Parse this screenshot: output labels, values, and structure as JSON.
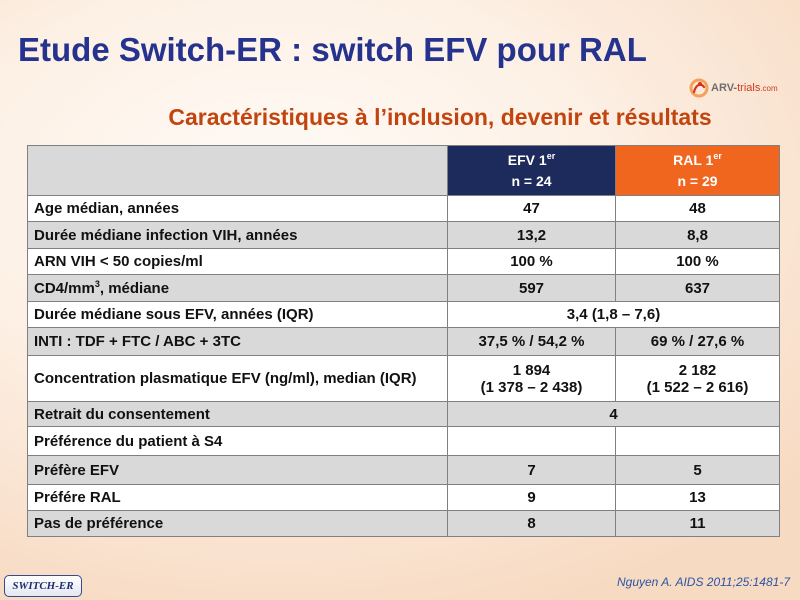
{
  "slide": {
    "title": "Etude Switch-ER : switch EFV pour RAL",
    "subtitle": "Caractéristiques à l’inclusion, devenir et résultats",
    "logo": {
      "part1": "ARV-",
      "part2": "trials",
      "part3": ".com"
    },
    "badge": "SWITCH-ER",
    "reference": "Nguyen A. AIDS 2011;25:1481-7"
  },
  "colors": {
    "title": "#25338f",
    "subtitle": "#c2450f",
    "efv_header": "#1d2a5c",
    "ral_header": "#f0661f",
    "row_shade": "#d9d9d9",
    "reference": "#2a55a6",
    "badge": "#1f2d6e"
  },
  "table": {
    "columns": [
      {
        "name": "EFV 1",
        "sup": "er",
        "n": "n = 24"
      },
      {
        "name": "RAL 1",
        "sup": "er",
        "n": "n = 29"
      }
    ],
    "rows": [
      {
        "label": "Age médian, années",
        "efv": "47",
        "ral": "48"
      },
      {
        "label": "Durée médiane infection VIH, années",
        "efv": "13,2",
        "ral": "8,8"
      },
      {
        "label": "ARN VIH < 50 copies/ml",
        "efv": "100 %",
        "ral": "100 %"
      },
      {
        "label": "CD4/mm",
        "label_sup": "3",
        "label_suffix": ", médiane",
        "efv": "597",
        "ral": "637"
      },
      {
        "label": "Durée médiane sous EFV, années (IQR)",
        "both": "3,4 (1,8 – 7,6)"
      },
      {
        "label": "INTI : TDF + FTC / ABC + 3TC",
        "efv": "37,5 % / 54,2 %",
        "ral": "69 % / 27,6 %"
      },
      {
        "label": "Concentration plasmatique EFV (ng/ml), median (IQR)",
        "efv": "1 894",
        "efv_iqr": "(1 378 – 2 438)",
        "ral": "2 182",
        "ral_iqr": "(1 522 – 2 616)"
      },
      {
        "label": "Retrait du consentement",
        "both": "4"
      },
      {
        "label": "Préférence du patient à S4"
      },
      {
        "label": "Préfère EFV",
        "efv": "7",
        "ral": "5"
      },
      {
        "label": "Préfére RAL",
        "efv": "9",
        "ral": "13"
      },
      {
        "label": "Pas de préférence",
        "efv": "8",
        "ral": "11"
      }
    ]
  }
}
